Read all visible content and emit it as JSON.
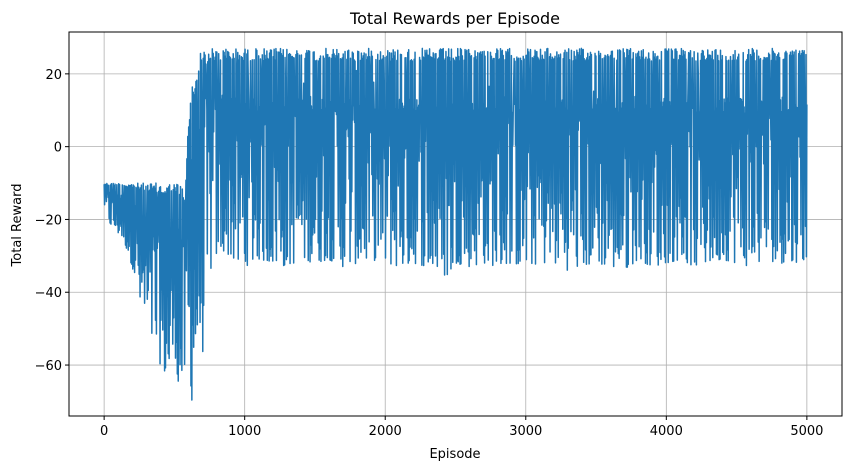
{
  "chart_data": {
    "type": "line",
    "title": "Total Rewards per Episode",
    "xlabel": "Episode",
    "ylabel": "Total Reward",
    "xlim": [
      -250,
      5250
    ],
    "ylim": [
      -74,
      31.5
    ],
    "xticks": [
      0,
      1000,
      2000,
      3000,
      4000,
      5000
    ],
    "xtick_labels": [
      "0",
      "1000",
      "2000",
      "3000",
      "4000",
      "5000"
    ],
    "yticks": [
      -60,
      -40,
      -20,
      0,
      20
    ],
    "ytick_labels": [
      "−60",
      "−40",
      "−20",
      "0",
      "20"
    ],
    "grid": true,
    "line_color": "#1f77b4",
    "series": [
      {
        "x": [
          0,
          25,
          50,
          75,
          100,
          125,
          150,
          175,
          200,
          225,
          250,
          275,
          300,
          325,
          350,
          375,
          400,
          425,
          450,
          475,
          500,
          525,
          550,
          575,
          600,
          625,
          650,
          675,
          700,
          725,
          750,
          775,
          800,
          850,
          900,
          950,
          1000,
          1100,
          1200,
          1300,
          1400,
          1500,
          1600,
          1700,
          1800,
          1900,
          2000,
          2100,
          2200,
          2300,
          2400,
          2450,
          2500,
          2600,
          2700,
          2800,
          2900,
          3000,
          3100,
          3200,
          3300,
          3400,
          3500,
          3600,
          3700,
          3800,
          3900,
          4000,
          4100,
          4200,
          4300,
          4400,
          4500,
          4600,
          4700,
          4800,
          4900,
          5000
        ],
        "min": [
          -16,
          -20,
          -22,
          -23,
          -24,
          -25,
          -27,
          -30,
          -33,
          -37,
          -43,
          -47,
          -50,
          -53,
          -54,
          -56,
          -60,
          -62,
          -64,
          -63,
          -55,
          -65,
          -67,
          -62,
          -60,
          -70,
          -60,
          -52,
          -57,
          -48,
          -35,
          -32,
          -30,
          -29,
          -30,
          -33,
          -33,
          -31,
          -32,
          -33,
          -31,
          -32,
          -31,
          -33,
          -32,
          -31,
          -32,
          -33,
          -32,
          -33,
          -35,
          -36,
          -32,
          -33,
          -32,
          -33,
          -32,
          -33,
          -32,
          -32,
          -34,
          -33,
          -32,
          -33,
          -34,
          -31,
          -33,
          -32,
          -31,
          -33,
          -32,
          -31,
          -32,
          -33,
          -31,
          -32,
          -32,
          -31
        ],
        "max": [
          -10,
          -10,
          -10,
          -10,
          -10,
          -10,
          -10,
          -10,
          -10,
          -10,
          -10,
          -10,
          -10,
          -10,
          -10,
          -10,
          -10,
          -10,
          -10,
          -10,
          -10,
          -10,
          -10,
          -15,
          9,
          17,
          20,
          25,
          27,
          27,
          27,
          27,
          27,
          27,
          27,
          27,
          27,
          27,
          27,
          27,
          27,
          27,
          27,
          27,
          27,
          27,
          27,
          27,
          27,
          27,
          27,
          27,
          27,
          27,
          27,
          27,
          27,
          27,
          27,
          27,
          27,
          27,
          27,
          27,
          27,
          27,
          27,
          27,
          27,
          27,
          27,
          27,
          27,
          27,
          27,
          27,
          27,
          27
        ]
      }
    ]
  }
}
